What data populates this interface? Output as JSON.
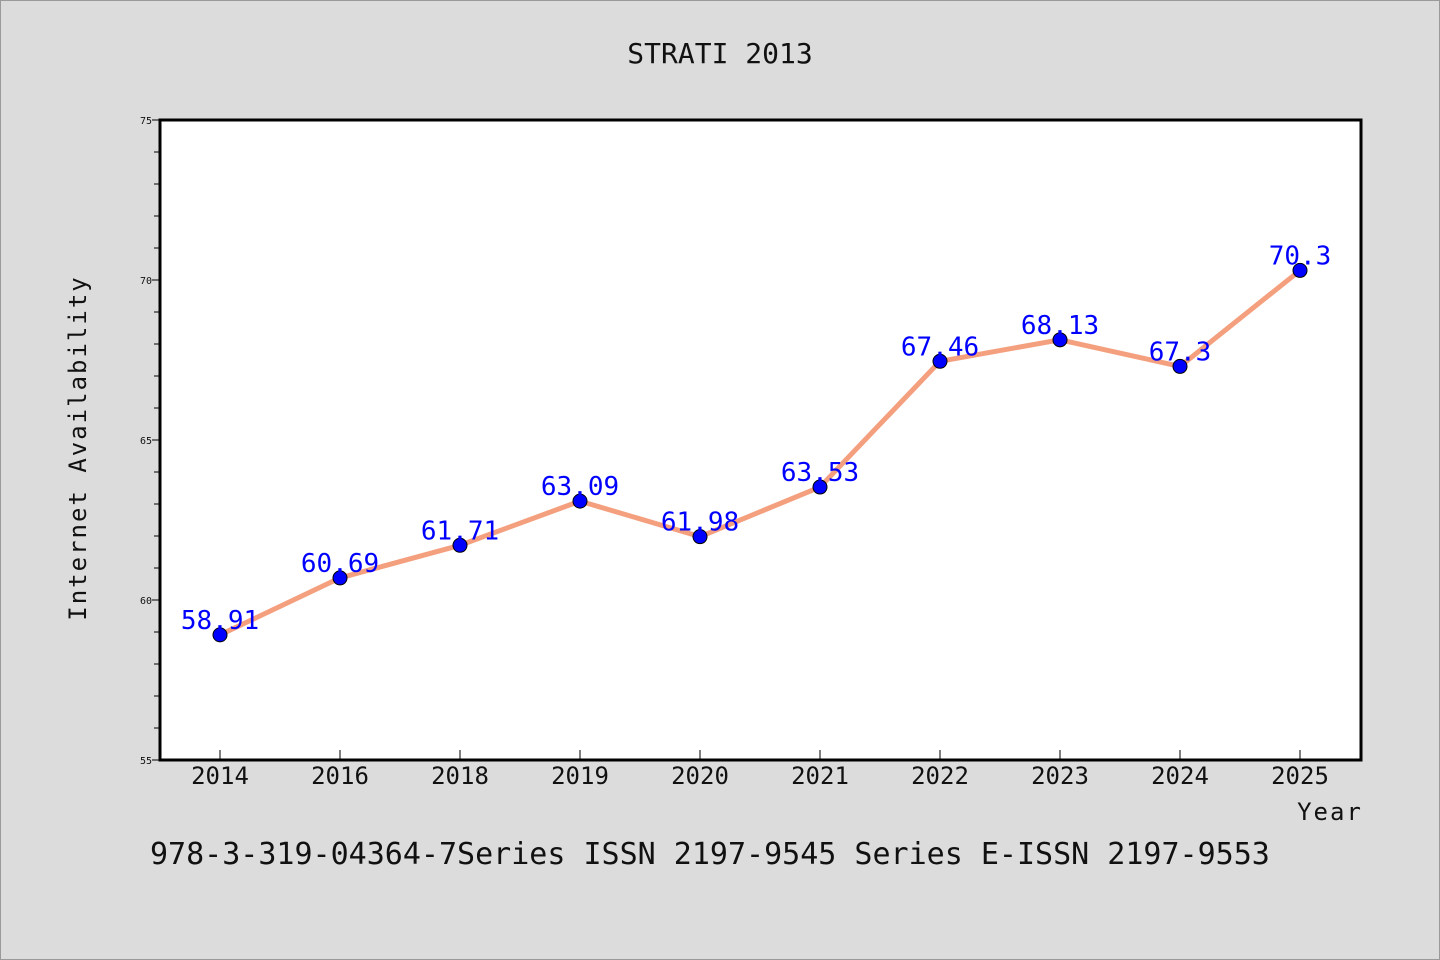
{
  "chart_data": {
    "type": "line",
    "title": "STRATI 2013",
    "xlabel": "Year",
    "ylabel": "Internet Availability",
    "categories": [
      "2014",
      "2016",
      "2018",
      "2019",
      "2020",
      "2021",
      "2022",
      "2023",
      "2024",
      "2025"
    ],
    "series": [
      {
        "values": [
          58.91,
          60.69,
          61.71,
          63.09,
          61.98,
          63.53,
          67.46,
          68.13,
          67.3,
          70.3
        ],
        "line_color": "#f4a07f",
        "marker_color": "#0000ff"
      }
    ],
    "data_labels": [
      "58.91",
      "60.69",
      "61.71",
      "63.09",
      "61.98",
      "63.53",
      "67.46",
      "68.13",
      "67.3",
      "70.3"
    ],
    "ylim": [
      55,
      75
    ],
    "yticks": [
      "55",
      "60",
      "65",
      "70",
      "75"
    ],
    "grid": false,
    "legend": "none"
  },
  "footer": {
    "text": "978-3-319-04364-7Series ISSN 2197-9545 Series E-ISSN 2197-9553"
  }
}
